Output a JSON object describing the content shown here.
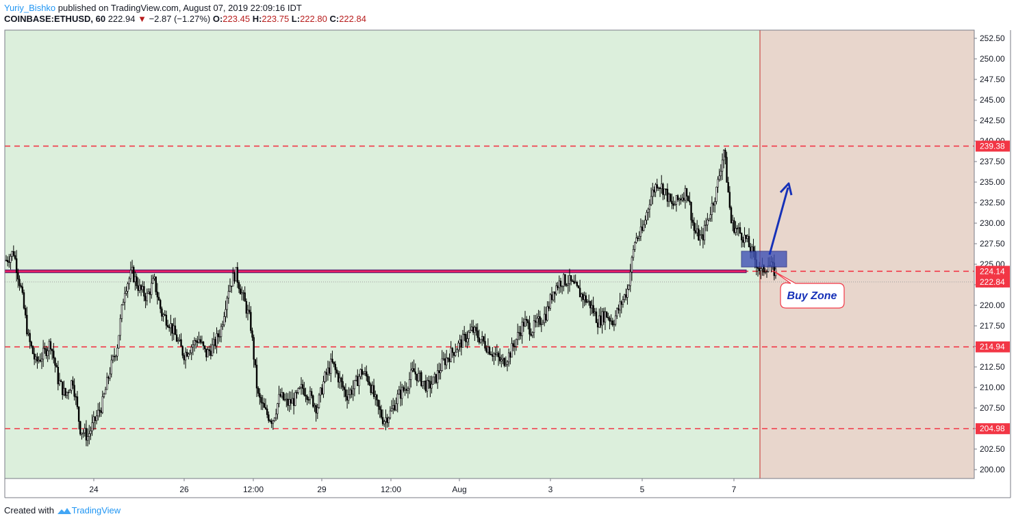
{
  "header": {
    "author": "Yuriy_Bishko",
    "published": "published on TradingView.com, August 07, 2019 22:09:16 IDT",
    "symbol": "COINBASE:ETHUSD, 60",
    "last": "222.94",
    "change": "−2.87 (−1.27%)",
    "o_label": "O:",
    "o": "223.45",
    "h_label": "H:",
    "h": "223.75",
    "l_label": "L:",
    "l": "222.80",
    "c_label": "C:",
    "c": "222.84"
  },
  "footer": {
    "created_with": "Created with",
    "brand": "TradingView"
  },
  "chart_data": {
    "type": "candlestick",
    "x_tick_labels": [
      "24",
      "26",
      "12:00",
      "29",
      "12:00",
      "Aug",
      "3",
      "5",
      "7"
    ],
    "y_ticks": [
      "200.00",
      "202.50",
      "205.00",
      "207.50",
      "210.00",
      "212.50",
      "215.00",
      "217.50",
      "220.00",
      "222.50",
      "225.00",
      "227.50",
      "230.00",
      "232.50",
      "235.00",
      "237.50",
      "240.00",
      "242.50",
      "245.00",
      "247.50",
      "250.00",
      "252.50"
    ],
    "ylim": [
      199,
      253.5
    ],
    "horizontal_levels": [
      {
        "value": 239.38,
        "label": "239.38",
        "style": "dashed",
        "color": "#f23645"
      },
      {
        "value": 224.14,
        "label": "224.14",
        "style": "dashed",
        "color": "#f23645"
      },
      {
        "value": 214.94,
        "label": "214.94",
        "style": "dashed",
        "color": "#f23645"
      },
      {
        "value": 204.98,
        "label": "204.98",
        "style": "dashed",
        "color": "#f23645"
      }
    ],
    "last_price": {
      "value": 222.84,
      "label": "222.84",
      "color": "#f23645"
    },
    "resistance_band": {
      "value": 224.14,
      "color": "#e91e63"
    },
    "price_path": [
      225.5,
      226.5,
      222,
      216,
      213,
      214,
      215.5,
      211,
      209,
      211,
      205,
      204,
      206,
      208,
      212,
      215,
      222,
      224,
      222,
      221,
      223,
      219,
      218,
      216,
      214,
      215,
      216,
      214,
      215,
      217,
      222,
      224,
      221,
      218,
      209,
      207,
      206,
      209,
      208,
      208.5,
      210,
      209,
      207.5,
      211,
      213,
      211,
      209,
      210,
      212,
      211,
      208,
      206,
      207,
      209,
      210,
      212,
      211,
      210,
      211,
      213,
      214,
      215,
      216,
      217,
      216,
      215,
      214,
      213,
      214,
      216,
      218,
      217,
      218,
      219,
      222,
      223,
      223,
      222,
      221,
      220,
      218,
      219,
      218,
      220,
      222,
      228,
      229,
      233,
      235,
      234,
      232,
      233,
      234,
      229,
      228,
      231,
      234,
      239,
      230,
      229,
      228,
      226,
      224,
      225,
      224
    ],
    "annotations": [
      {
        "type": "text-label",
        "text": "Buy Zone",
        "color": "#1631b8"
      },
      {
        "type": "rectangle",
        "role": "buy zone box",
        "color": "#3f51b5"
      },
      {
        "type": "arrow",
        "direction": "up",
        "color": "#1631b8"
      }
    ],
    "background_colors": {
      "past": "#dcefdc",
      "future": "#e8d6cc"
    },
    "grid": false
  }
}
